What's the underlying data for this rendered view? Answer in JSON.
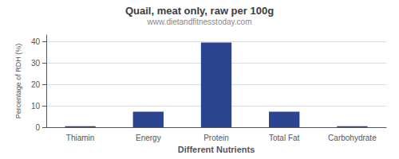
{
  "chart_data": {
    "type": "bar",
    "title": "Quail, meat only, raw per 100g",
    "subtitle": "www.dietandfitnesstoday.com",
    "xlabel": "Different Nutrients",
    "ylabel": "Percentage of RDH (%)",
    "categories": [
      "Thiamin",
      "Energy",
      "Protein",
      "Total Fat",
      "Carbohydrate"
    ],
    "values": [
      0.5,
      7.2,
      39.5,
      7.2,
      0.5
    ],
    "color": "#2b4490",
    "ylim": [
      0,
      43
    ],
    "yticks": [
      0,
      10,
      20,
      30,
      40
    ],
    "grid": true
  }
}
